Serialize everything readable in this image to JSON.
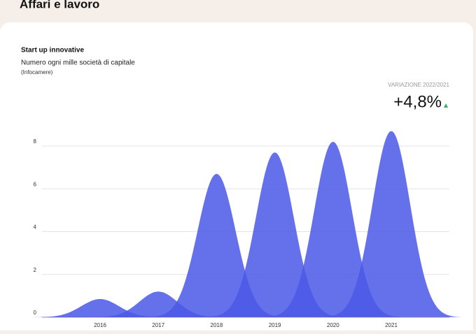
{
  "header": {
    "title": "Affari e lavoro"
  },
  "chart_data": {
    "type": "peak",
    "title": "Start up innovative",
    "subtitle": "Numero ogni mille società di capitale",
    "source": "(Infocamere)",
    "variation_label": "VARIAZIONE 2022/2021",
    "variation_value": "+4,8%",
    "categories": [
      "2016",
      "2017",
      "2018",
      "2019",
      "2020",
      "2021"
    ],
    "values": [
      0.85,
      1.2,
      6.7,
      7.7,
      8.2,
      8.7
    ],
    "color": "#4a58e6",
    "ylim": [
      0,
      8
    ],
    "yticks": [
      0,
      2,
      4,
      6,
      8
    ],
    "grid": true
  }
}
